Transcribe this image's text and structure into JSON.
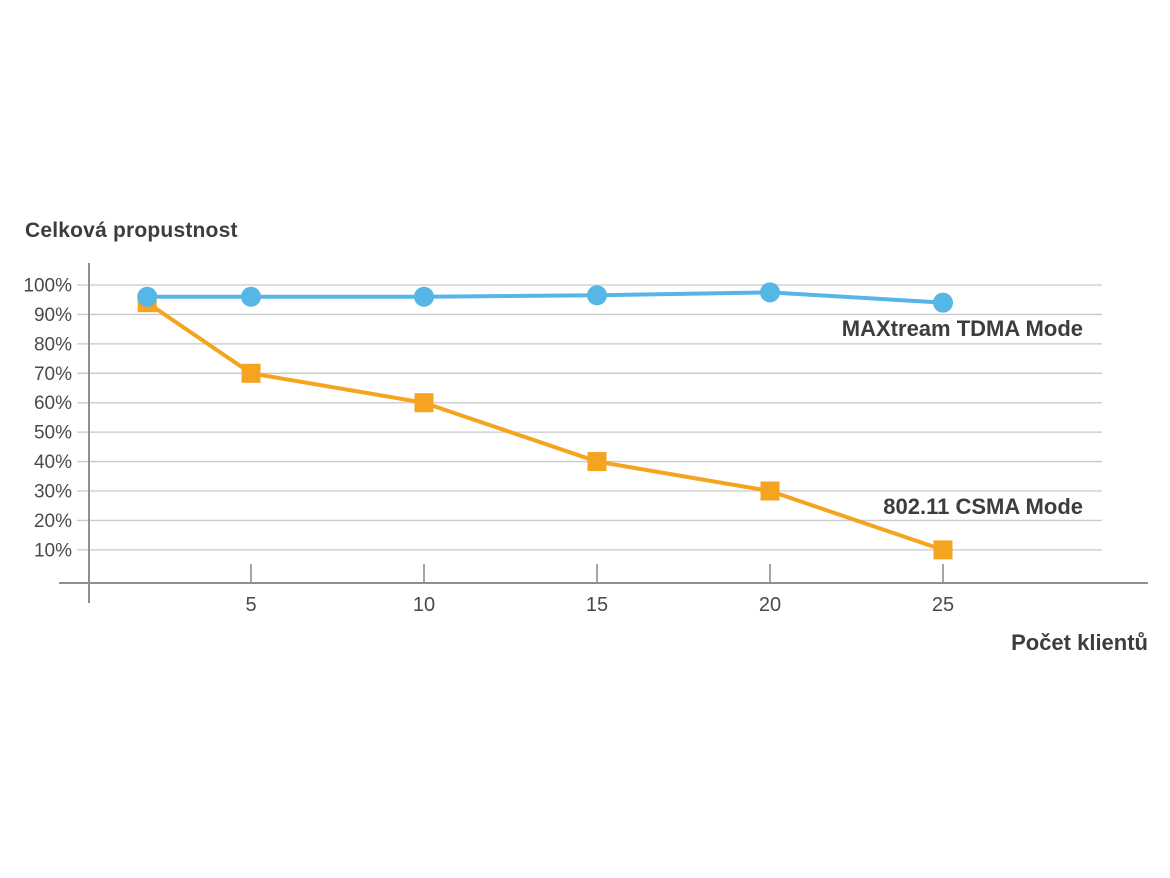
{
  "page": {
    "background_color": "#ffffff"
  },
  "chart": {
    "title": "Celková propustnost",
    "x_axis_label": "Počet klientů",
    "colors": {
      "tdma_line": "#56b6e6",
      "csma_line": "#f5a41f",
      "gridline": "#c9c9c9",
      "axis": "#8f8f8f",
      "heading_text": "#3d3d3d",
      "tick_text": "#4a4a4a"
    }
  },
  "chart_data": {
    "type": "line",
    "title": "Celková propustnost",
    "xlabel": "Počet klientů",
    "ylabel": "Celková propustnost (%)",
    "x": [
      2,
      5,
      10,
      15,
      20,
      25
    ],
    "x_ticks": [
      "5",
      "10",
      "15",
      "20",
      "25"
    ],
    "x_tick_values": [
      5,
      10,
      15,
      20,
      25
    ],
    "y_ticks": [
      "100%",
      "90%",
      "80%",
      "70%",
      "60%",
      "50%",
      "40%",
      "30%",
      "20%",
      "10%"
    ],
    "y_tick_values": [
      100,
      90,
      80,
      70,
      60,
      50,
      40,
      30,
      20,
      10
    ],
    "ylim": [
      0,
      108
    ],
    "grid": "horizontal",
    "legend_position": "inline-right-of-plot",
    "series": [
      {
        "name": "MAXtream TDMA Mode",
        "color": "#56b6e6",
        "marker": "circle",
        "values": [
          96,
          96,
          96,
          96.5,
          97.5,
          94
        ]
      },
      {
        "name": "802.11 CSMA Mode",
        "color": "#f5a41f",
        "marker": "square",
        "values": [
          94,
          70,
          60,
          40,
          30,
          10
        ]
      }
    ]
  }
}
